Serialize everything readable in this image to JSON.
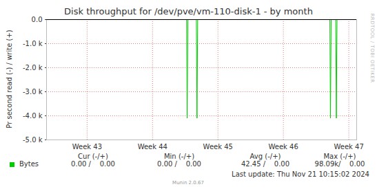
{
  "chart_data": {
    "type": "line",
    "title": "Disk throughput for /dev/pve/vm-110-disk-1 - by month",
    "y_label": "Pr second read (-) / write (+)",
    "x": [
      42.88,
      45.02,
      45.03,
      45.04,
      45.17,
      45.18,
      45.19,
      47.21,
      47.22,
      47.23,
      47.3,
      47.31,
      47.32,
      47.49
    ],
    "series": [
      {
        "name": "Bytes",
        "color": "#00cc00",
        "values": [
          0,
          0,
          -4100,
          0,
          0,
          -4100,
          0,
          0,
          -4100,
          0,
          0,
          -4100,
          0,
          0
        ]
      }
    ],
    "xlim": [
      42.88,
      47.62
    ],
    "xticks": [
      {
        "value": 43.5,
        "label": "Week 43"
      },
      {
        "value": 44.5,
        "label": "Week 44"
      },
      {
        "value": 45.5,
        "label": "Week 45"
      },
      {
        "value": 46.5,
        "label": "Week 46"
      },
      {
        "value": 47.5,
        "label": "Week 47"
      }
    ],
    "ylim": [
      -5000,
      0
    ],
    "yticks": [
      {
        "value": 0,
        "label": "0.0"
      },
      {
        "value": -1000,
        "label": "-1.0 k"
      },
      {
        "value": -2000,
        "label": "-2.0 k"
      },
      {
        "value": -3000,
        "label": "-3.0 k"
      },
      {
        "value": -4000,
        "label": "-4.0 k"
      },
      {
        "value": -5000,
        "label": "-5.0 k"
      }
    ],
    "grid": true,
    "summary": {
      "columns": [
        "Cur (-/+)",
        "Min (-/+)",
        "Avg (-/+)",
        "Max (-/+)"
      ],
      "cells": [
        "0.00 /    0.00",
        "0.00 /    0.00",
        "42.45 /    0.00",
        "98.09k/    0.00"
      ]
    },
    "last_update": "Last update: Thu Nov 21 10:15:02 2024",
    "footer": "Munin 2.0.67",
    "watermark": "RRDTOOL / TOBI OETIKER"
  }
}
